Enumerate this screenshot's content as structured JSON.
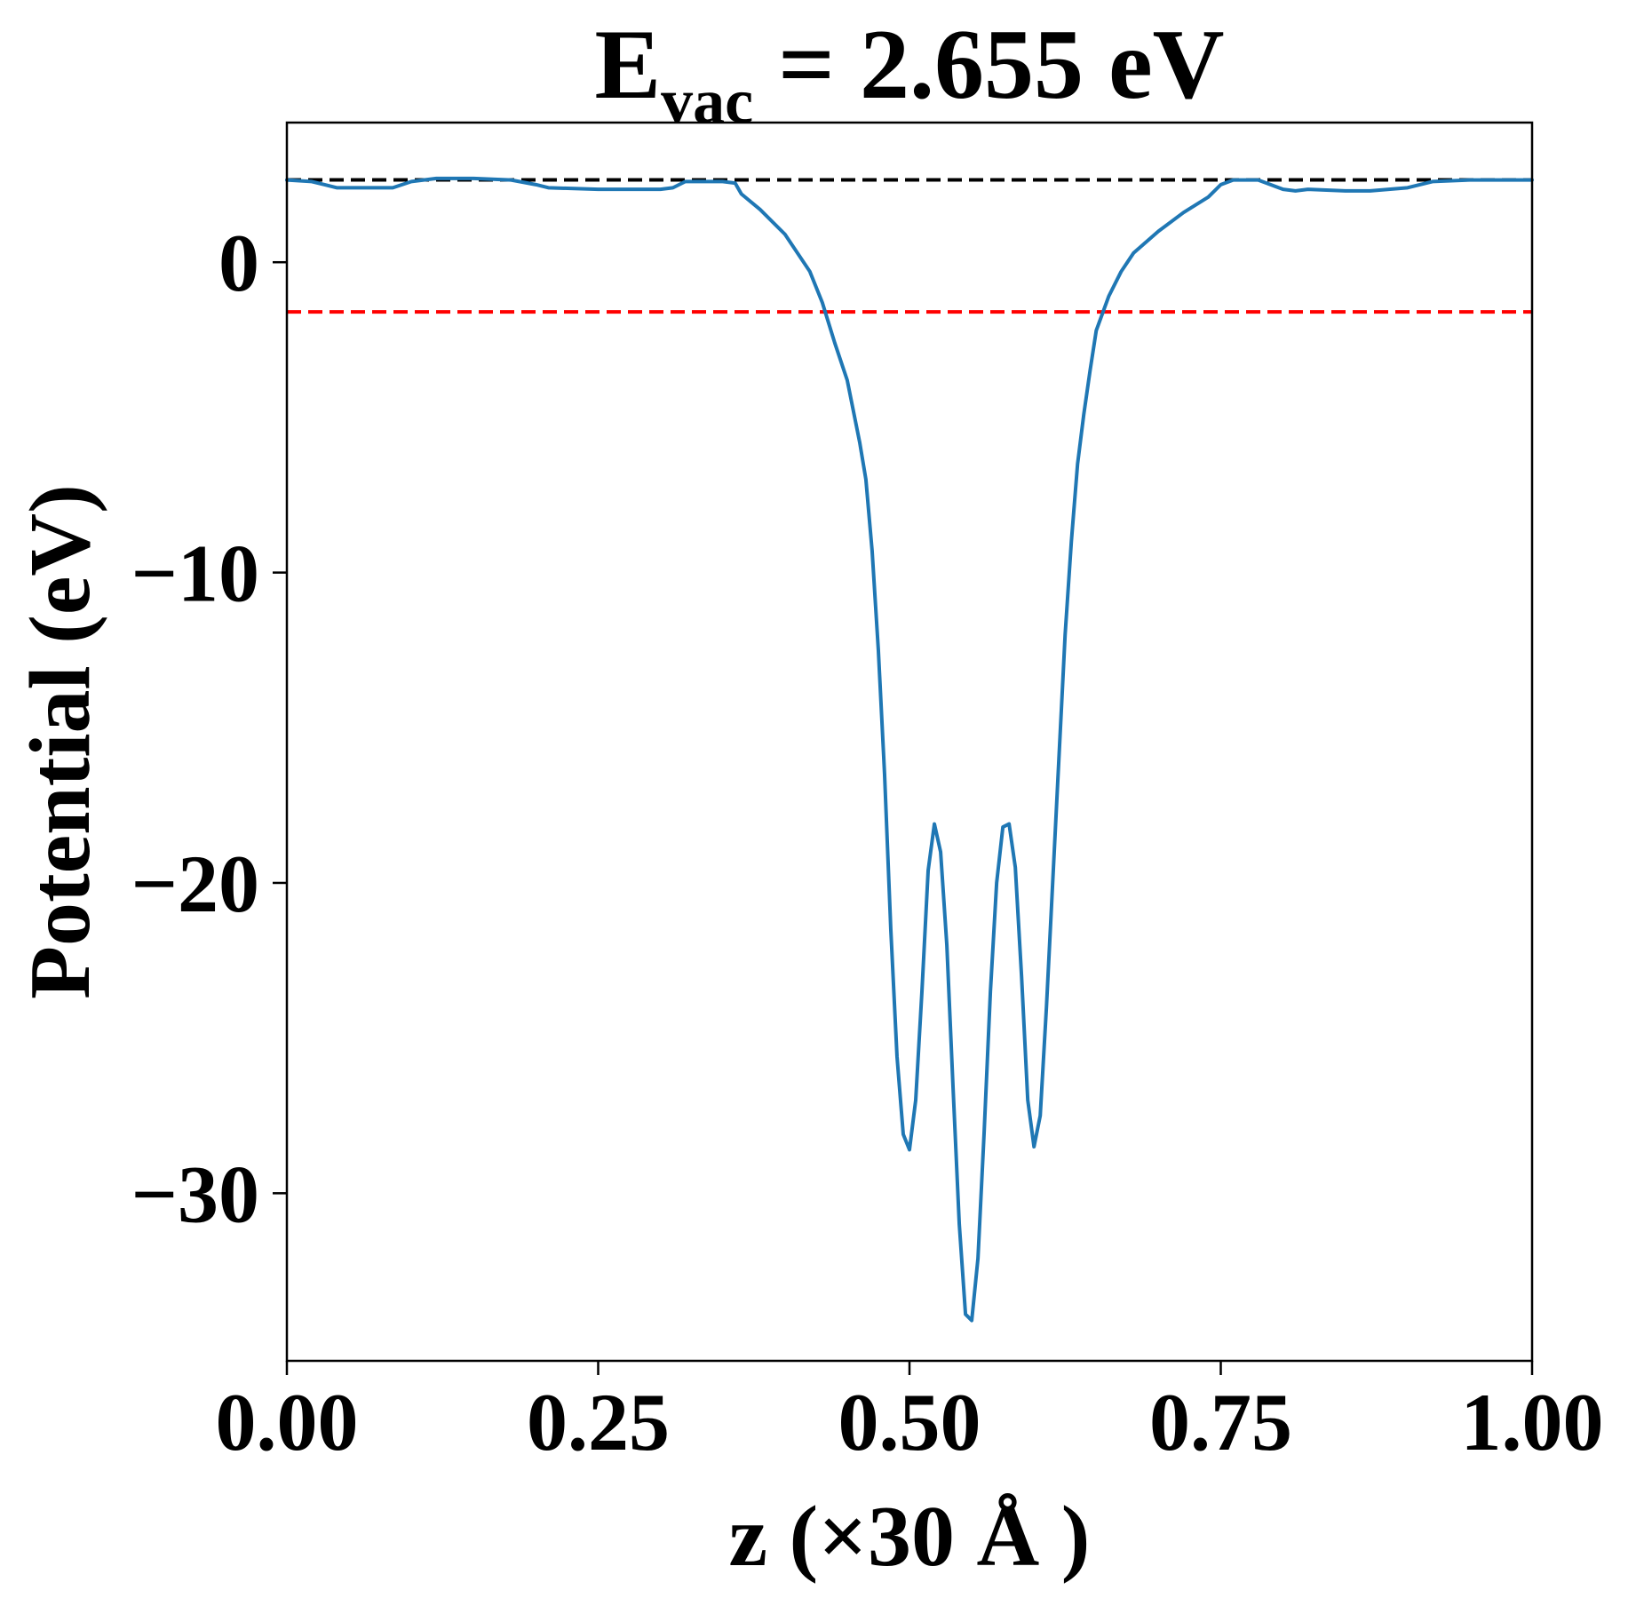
{
  "chart_data": {
    "type": "line",
    "title": {
      "main": "E",
      "subscript": "vac",
      "rest": " = 2.655 eV"
    },
    "xlabel": "z (×30 Å )",
    "ylabel": "Potential (eV)",
    "xlim": [
      0.0,
      1.0
    ],
    "ylim": [
      -35.4,
      4.5
    ],
    "x_ticks": [
      0.0,
      0.25,
      0.5,
      0.75,
      1.0
    ],
    "x_tick_labels": [
      "0.00",
      "0.25",
      "0.50",
      "0.75",
      "1.00"
    ],
    "y_ticks": [
      0,
      -10,
      -20,
      -30
    ],
    "y_tick_labels": [
      "0",
      "−10",
      "−20",
      "−30"
    ],
    "grid": false,
    "colors": {
      "series": "#1f77b4",
      "vacuum_line": "#000000",
      "fermi_line": "#ff0000"
    },
    "reference_lines": [
      {
        "y": 2.655,
        "color": "#000000",
        "style": "dashed"
      },
      {
        "y": -1.6,
        "color": "#ff0000",
        "style": "dashed"
      }
    ],
    "series": [
      {
        "x": [
          0.0,
          0.02,
          0.03,
          0.04,
          0.07,
          0.085,
          0.1,
          0.12,
          0.15,
          0.18,
          0.2,
          0.21,
          0.25,
          0.3,
          0.31,
          0.32,
          0.35,
          0.36,
          0.365,
          0.38,
          0.4,
          0.42,
          0.43,
          0.44,
          0.45,
          0.46,
          0.465,
          0.47,
          0.475,
          0.48,
          0.485,
          0.49,
          0.495,
          0.5,
          0.505,
          0.51,
          0.515,
          0.52,
          0.525,
          0.53,
          0.535,
          0.54,
          0.545,
          0.55,
          0.555,
          0.56,
          0.565,
          0.57,
          0.575,
          0.58,
          0.585,
          0.59,
          0.595,
          0.6,
          0.605,
          0.61,
          0.615,
          0.62,
          0.625,
          0.63,
          0.635,
          0.64,
          0.645,
          0.65,
          0.66,
          0.67,
          0.68,
          0.7,
          0.72,
          0.74,
          0.75,
          0.76,
          0.78,
          0.8,
          0.81,
          0.82,
          0.85,
          0.87,
          0.9,
          0.92,
          0.95,
          1.0
        ],
        "y": [
          2.65,
          2.6,
          2.5,
          2.4,
          2.4,
          2.4,
          2.6,
          2.7,
          2.7,
          2.65,
          2.5,
          2.4,
          2.35,
          2.35,
          2.4,
          2.6,
          2.6,
          2.55,
          2.2,
          1.7,
          0.9,
          -0.3,
          -1.3,
          -2.6,
          -3.8,
          -5.8,
          -7.0,
          -9.3,
          -12.5,
          -16.5,
          -21.5,
          -25.6,
          -28.1,
          -28.6,
          -27.0,
          -23.5,
          -19.6,
          -18.1,
          -19.0,
          -22.0,
          -26.6,
          -31.0,
          -33.9,
          -34.1,
          -32.1,
          -28.0,
          -23.5,
          -20.0,
          -18.2,
          -18.1,
          -19.5,
          -23.0,
          -27.0,
          -28.5,
          -27.5,
          -24.0,
          -20.0,
          -16.0,
          -12.0,
          -9.0,
          -6.5,
          -4.9,
          -3.5,
          -2.2,
          -1.1,
          -0.3,
          0.3,
          1.0,
          1.6,
          2.1,
          2.5,
          2.65,
          2.65,
          2.35,
          2.3,
          2.35,
          2.3,
          2.3,
          2.4,
          2.6,
          2.65,
          2.65
        ]
      }
    ]
  }
}
